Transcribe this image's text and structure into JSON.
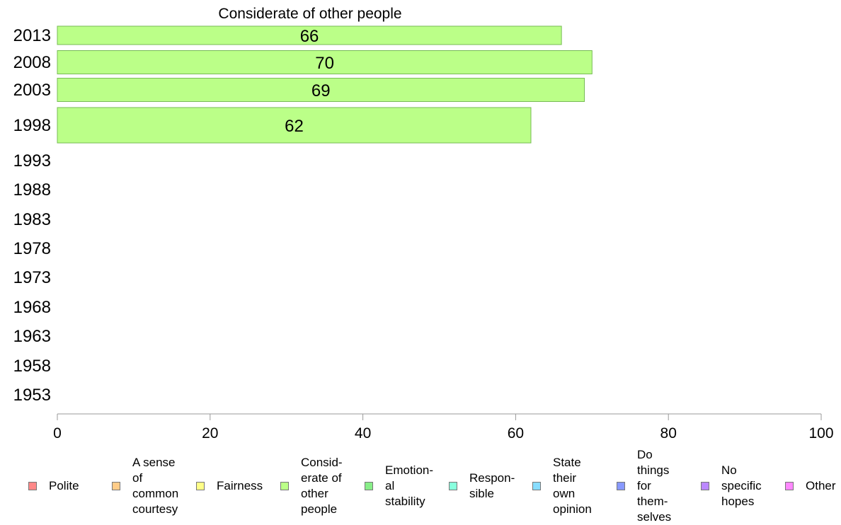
{
  "chart_data": {
    "type": "bar",
    "orientation": "horizontal",
    "title": "Considerate of other people",
    "categories": [
      "2013",
      "2008",
      "2003",
      "1998",
      "1993",
      "1988",
      "1983",
      "1978",
      "1973",
      "1968",
      "1963",
      "1958",
      "1953"
    ],
    "series": [
      {
        "name": "Consid-\nerate of\nother\npeople",
        "color": "#bbff88",
        "values": [
          66,
          70,
          69,
          62,
          null,
          null,
          null,
          null,
          null,
          null,
          null,
          null,
          null
        ],
        "labels": [
          "66",
          "70",
          "69",
          "62",
          "",
          "",
          "",
          "",
          "",
          "",
          "",
          "",
          ""
        ]
      }
    ],
    "xlim": [
      0,
      100
    ],
    "xticks": [
      "0",
      "20",
      "40",
      "60",
      "80",
      "100"
    ],
    "grid": false,
    "legend_position": "bottom",
    "legend": [
      {
        "label": "Polite",
        "color": "#ff8888"
      },
      {
        "label": "A sense\nof\ncommon\ncourtesy",
        "color": "#ffcc88"
      },
      {
        "label": "Fairness",
        "color": "#ffff88"
      },
      {
        "label": "Consid-\nerate of\nother\npeople",
        "color": "#bbff88"
      },
      {
        "label": "Emotion-\nal\nstability",
        "color": "#88ee88"
      },
      {
        "label": "Respon-\nsible",
        "color": "#88ffdd"
      },
      {
        "label": "State\ntheir\nown\nopinion",
        "color": "#88ddff"
      },
      {
        "label": "Do\nthings\nfor\nthem-\nselves",
        "color": "#8899ff"
      },
      {
        "label": "No\nspecific\nhopes",
        "color": "#bb88ff"
      },
      {
        "label": "Other",
        "color": "#ff88ff"
      }
    ]
  }
}
